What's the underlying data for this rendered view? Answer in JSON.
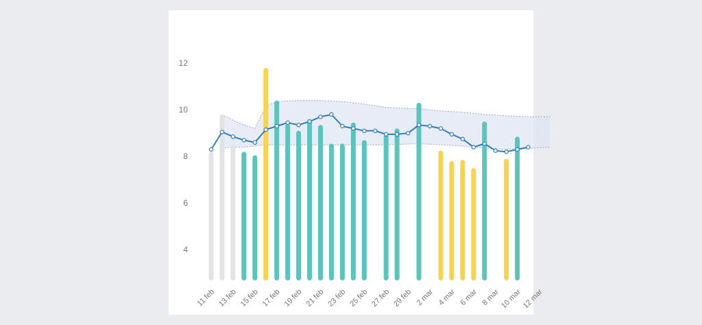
{
  "chart_data": {
    "type": "bar",
    "title": "",
    "xlabel": "",
    "ylabel": "",
    "ylim": [
      2.7,
      12.5
    ],
    "y_ticks": [
      4,
      6,
      8,
      10,
      12
    ],
    "grid": false,
    "x_tick_labels": [
      "11 feb",
      "13 feb",
      "15 feb",
      "17 feb",
      "19 feb",
      "21 feb",
      "23 feb",
      "25 feb",
      "27 feb",
      "29 feb",
      "2 mar",
      "4 mar",
      "6 mar",
      "8 mar",
      "10 mar",
      "12 mar"
    ],
    "colors": {
      "teal": "#5bc4bd",
      "yellow": "#f7d44f",
      "gray": "#e3e3e3",
      "line": "#2a7ebf",
      "band": "#dfe5f3",
      "band_edge": "#a0a8b8"
    },
    "bars": [
      {
        "date": "11 feb",
        "value": 8.2,
        "color": "gray"
      },
      {
        "date": "12 feb",
        "value": 9.8,
        "color": "gray"
      },
      {
        "date": "13 feb",
        "value": 8.5,
        "color": "gray"
      },
      {
        "date": "14 feb",
        "value": 8.2,
        "color": "teal"
      },
      {
        "date": "15 feb",
        "value": 8.05,
        "color": "teal"
      },
      {
        "date": "16 feb",
        "value": 11.8,
        "color": "yellow"
      },
      {
        "date": "17 feb",
        "value": 10.4,
        "color": "teal"
      },
      {
        "date": "18 feb",
        "value": 9.4,
        "color": "teal"
      },
      {
        "date": "19 feb",
        "value": 9.1,
        "color": "teal"
      },
      {
        "date": "20 feb",
        "value": 9.6,
        "color": "teal"
      },
      {
        "date": "21 feb",
        "value": 9.35,
        "color": "teal"
      },
      {
        "date": "22 feb",
        "value": 8.55,
        "color": "teal"
      },
      {
        "date": "23 feb",
        "value": 8.55,
        "color": "teal"
      },
      {
        "date": "24 feb",
        "value": 9.45,
        "color": "teal"
      },
      {
        "date": "25 feb",
        "value": 8.7,
        "color": "teal"
      },
      {
        "date": "26 feb",
        "value": null,
        "color": "teal"
      },
      {
        "date": "27 feb",
        "value": 8.95,
        "color": "teal"
      },
      {
        "date": "28 feb",
        "value": 9.2,
        "color": "teal"
      },
      {
        "date": "29 feb",
        "value": null,
        "color": "teal"
      },
      {
        "date": "1 mar",
        "value": 10.3,
        "color": "teal"
      },
      {
        "date": "2 mar",
        "value": null,
        "color": "teal"
      },
      {
        "date": "3 mar",
        "value": 8.25,
        "color": "yellow"
      },
      {
        "date": "4 mar",
        "value": 7.8,
        "color": "yellow"
      },
      {
        "date": "5 mar",
        "value": 7.85,
        "color": "yellow"
      },
      {
        "date": "6 mar",
        "value": 7.5,
        "color": "yellow"
      },
      {
        "date": "7 mar",
        "value": 9.5,
        "color": "teal"
      },
      {
        "date": "8 mar",
        "value": null,
        "color": "teal"
      },
      {
        "date": "9 mar",
        "value": 7.9,
        "color": "yellow"
      },
      {
        "date": "10 mar",
        "value": 8.85,
        "color": "teal"
      }
    ],
    "series": [
      {
        "type": "line",
        "dates": [
          "11 feb",
          "12 feb",
          "13 feb",
          "14 feb",
          "15 feb",
          "16 feb",
          "17 feb",
          "18 feb",
          "19 feb",
          "20 feb",
          "21 feb",
          "22 feb",
          "23 feb",
          "24 feb",
          "25 feb",
          "26 feb",
          "27 feb",
          "28 feb",
          "29 feb",
          "1 mar",
          "2 mar",
          "3 mar",
          "4 mar",
          "5 mar",
          "6 mar",
          "7 mar",
          "8 mar",
          "9 mar",
          "10 mar",
          "11 mar"
        ],
        "values": [
          8.3,
          9.05,
          8.85,
          8.7,
          8.6,
          9.15,
          9.3,
          9.45,
          9.35,
          9.5,
          9.7,
          9.8,
          9.3,
          9.2,
          9.1,
          9.1,
          8.95,
          8.95,
          9.0,
          9.35,
          9.3,
          9.2,
          8.95,
          8.75,
          8.4,
          8.55,
          8.25,
          8.2,
          8.3,
          8.4
        ]
      }
    ],
    "band": {
      "dates": [
        "12 feb",
        "13 feb",
        "14 feb",
        "15 feb",
        "16 feb",
        "17 feb",
        "19 feb",
        "21 feb",
        "23 feb",
        "25 feb",
        "27 feb",
        "1 mar",
        "3 mar",
        "5 mar",
        "7 mar",
        "9 mar",
        "11 mar",
        "13 mar"
      ],
      "upper": [
        9.8,
        9.55,
        9.35,
        9.2,
        10.15,
        10.35,
        10.4,
        10.4,
        10.35,
        10.25,
        10.1,
        10.05,
        9.95,
        9.9,
        9.8,
        9.75,
        9.7,
        9.7
      ],
      "lower": [
        8.35,
        8.4,
        8.4,
        8.45,
        8.5,
        8.5,
        8.5,
        8.5,
        8.5,
        8.5,
        8.5,
        8.55,
        8.5,
        8.45,
        8.35,
        8.3,
        8.35,
        8.4
      ]
    }
  }
}
